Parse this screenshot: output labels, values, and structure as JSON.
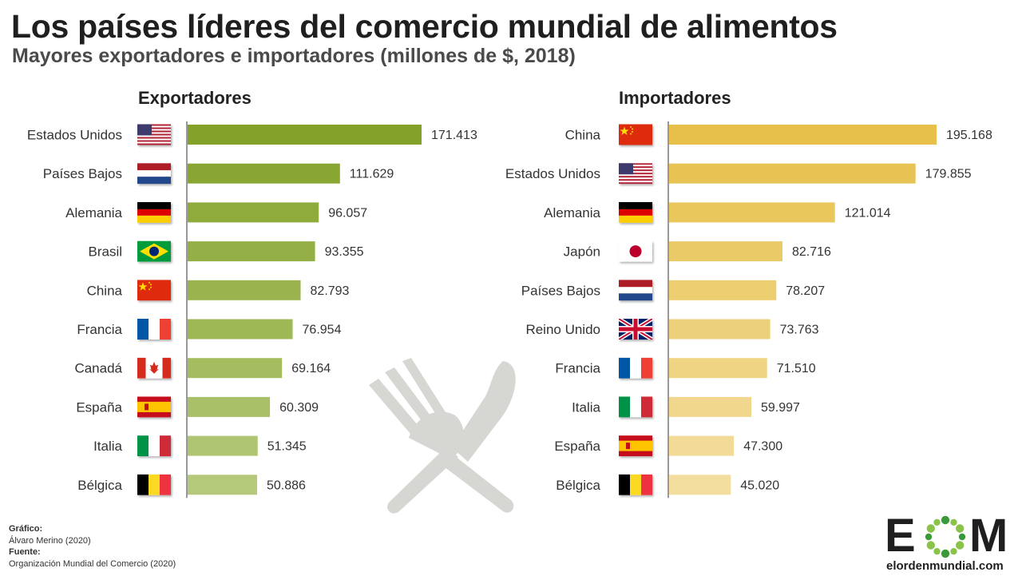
{
  "header": {
    "title": "Los países líderes del comercio mundial de alimentos",
    "subtitle": "Mayores exportadores e importadores (millones de $, 2018)"
  },
  "chart_data": [
    {
      "type": "bar",
      "orientation": "horizontal",
      "title": "Exportadores",
      "categories": [
        "Estados Unidos",
        "Países Bajos",
        "Alemania",
        "Brasil",
        "China",
        "Francia",
        "Canadá",
        "España",
        "Italia",
        "Bélgica"
      ],
      "values": [
        171413,
        111629,
        96057,
        93355,
        82793,
        76954,
        69164,
        60309,
        51345,
        50886
      ],
      "value_labels": [
        "171.413",
        "111.629",
        "96.057",
        "93.355",
        "82.793",
        "76.954",
        "69.164",
        "60.309",
        "51.345",
        "50.886"
      ],
      "flags": [
        "us",
        "nl",
        "de",
        "br",
        "cn",
        "fr",
        "ca",
        "es",
        "it",
        "be"
      ],
      "color_gradient": [
        "#84a22a",
        "#b5c97a"
      ]
    },
    {
      "type": "bar",
      "orientation": "horizontal",
      "title": "Importadores",
      "categories": [
        "China",
        "Estados Unidos",
        "Alemania",
        "Japón",
        "Países Bajos",
        "Reino Unido",
        "Francia",
        "Italia",
        "España",
        "Bélgica"
      ],
      "values": [
        195168,
        179855,
        121014,
        82716,
        78207,
        73763,
        71510,
        59997,
        47300,
        45020
      ],
      "value_labels": [
        "195.168",
        "179.855",
        "121.014",
        "82.716",
        "78.207",
        "73.763",
        "71.510",
        "59.997",
        "47.300",
        "45.020"
      ],
      "flags": [
        "cn",
        "us",
        "de",
        "jp",
        "nl",
        "gb",
        "fr",
        "it",
        "es",
        "be"
      ],
      "color_gradient": [
        "#e6c04a",
        "#f3dea0"
      ]
    }
  ],
  "decoration": {
    "icon": "fork-and-knife-icon",
    "color": "#d6d6d2"
  },
  "footer": {
    "grafico_label": "Gráfico:",
    "grafico_value": "Álvaro Merino (2020)",
    "fuente_label": "Fuente:",
    "fuente_value": "Organización Mundial del Comercio (2020)"
  },
  "logo": {
    "e": "E",
    "o": "O",
    "m": "M",
    "url": "elordenmundial.com",
    "ring_colors": [
      "#8bc34a",
      "#3a9a3a"
    ]
  }
}
